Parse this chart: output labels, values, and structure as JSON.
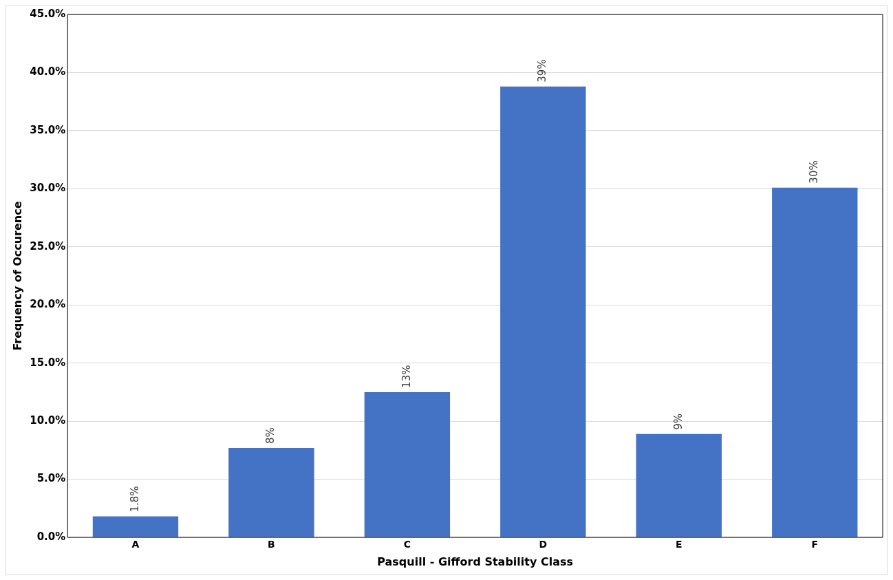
{
  "chart_data": {
    "type": "bar",
    "xlabel": "Pasquill - Gifford Stability Class",
    "ylabel": "Frequency of Occurence",
    "categories": [
      "A",
      "B",
      "C",
      "D",
      "E",
      "F"
    ],
    "values": [
      1.8,
      7.7,
      12.5,
      38.8,
      8.9,
      30.1
    ],
    "value_labels": [
      "1.8%",
      "8%",
      "13%",
      "39%",
      "9%",
      "30%"
    ],
    "color": "#4472c4",
    "ylim": [
      0,
      45
    ],
    "yticks": [
      {
        "value": 0,
        "label": "0.0%"
      },
      {
        "value": 5,
        "label": "5.0%"
      },
      {
        "value": 10,
        "label": "10.0%"
      },
      {
        "value": 15,
        "label": "15.0%"
      },
      {
        "value": 20,
        "label": "20.0%"
      },
      {
        "value": 25,
        "label": "25.0%"
      },
      {
        "value": 30,
        "label": "30.0%"
      },
      {
        "value": 35,
        "label": "35.0%"
      },
      {
        "value": 40,
        "label": "40.0%"
      },
      {
        "value": 45,
        "label": "45.0%"
      }
    ],
    "grid": "y",
    "legend": false
  }
}
